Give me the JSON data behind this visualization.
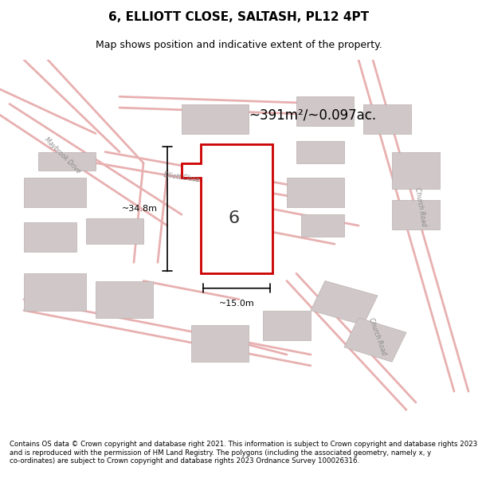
{
  "title": "6, ELLIOTT CLOSE, SALTASH, PL12 4PT",
  "subtitle": "Map shows position and indicative extent of the property.",
  "area_text": "~391m²/~0.097ac.",
  "number_label": "6",
  "dim_height": "~34.8m",
  "dim_width": "~15.0m",
  "footer": "Contains OS data © Crown copyright and database right 2021. This information is subject to Crown copyright and database rights 2023 and is reproduced with the permission of HM Land Registry. The polygons (including the associated geometry, namely x, y co-ordinates) are subject to Crown copyright and database rights 2023 Ordnance Survey 100026316.",
  "bg_color": "#f5f0f0",
  "map_bg": "#f9f5f5",
  "road_color": "#e8b0b0",
  "building_color": "#d0c8c8",
  "plot_fill": "#ffffff",
  "plot_edge": "#cc0000",
  "road_text_color": "#aaaaaa",
  "street_label1": "Maybrook Drive",
  "street_label2": "Elliott Close",
  "street_label3": "Church Road",
  "street_label4": "Church Road"
}
